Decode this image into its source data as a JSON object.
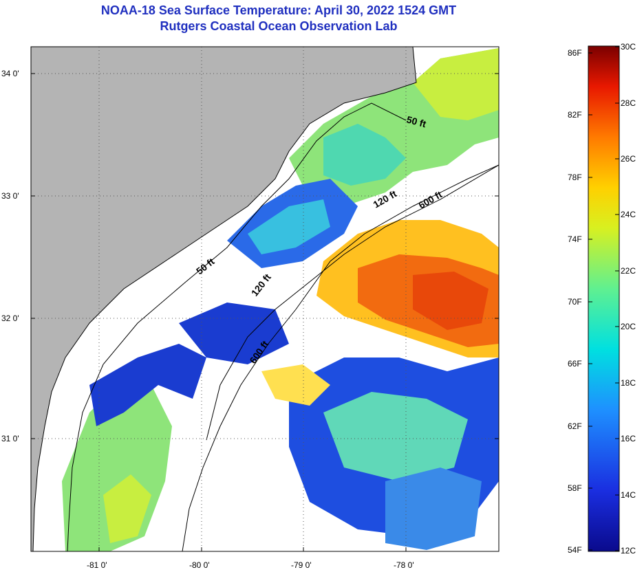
{
  "header": {
    "title": "NOAA-18 Sea Surface Temperature:  April 30, 2022 1524 GMT",
    "subtitle": "Rutgers Coastal Ocean Observation Lab"
  },
  "map": {
    "lat_labels": [
      "34 0'",
      "33 0'",
      "32 0'",
      "31 0'"
    ],
    "lon_labels": [
      "-81 0'",
      "-80 0'",
      "-79 0'",
      "-78 0'"
    ],
    "isobath_labels": [
      "50 ft",
      "120 ft",
      "600 ft",
      "50 ft",
      "120 ft",
      "600 ft"
    ],
    "colors": {
      "land": "#b4b4b4",
      "cloud": "#ffffff",
      "warm_core": "#f26b10",
      "shelf_green": "#7fe08a",
      "cold_blue": "#1436c8"
    }
  },
  "colorbar": {
    "fahrenheit": [
      "86F",
      "82F",
      "78F",
      "74F",
      "70F",
      "66F",
      "62F",
      "58F",
      "54F"
    ],
    "celsius": [
      "30C",
      "28C",
      "26C",
      "24C",
      "22C",
      "20C",
      "18C",
      "16C",
      "14C",
      "12C"
    ]
  }
}
